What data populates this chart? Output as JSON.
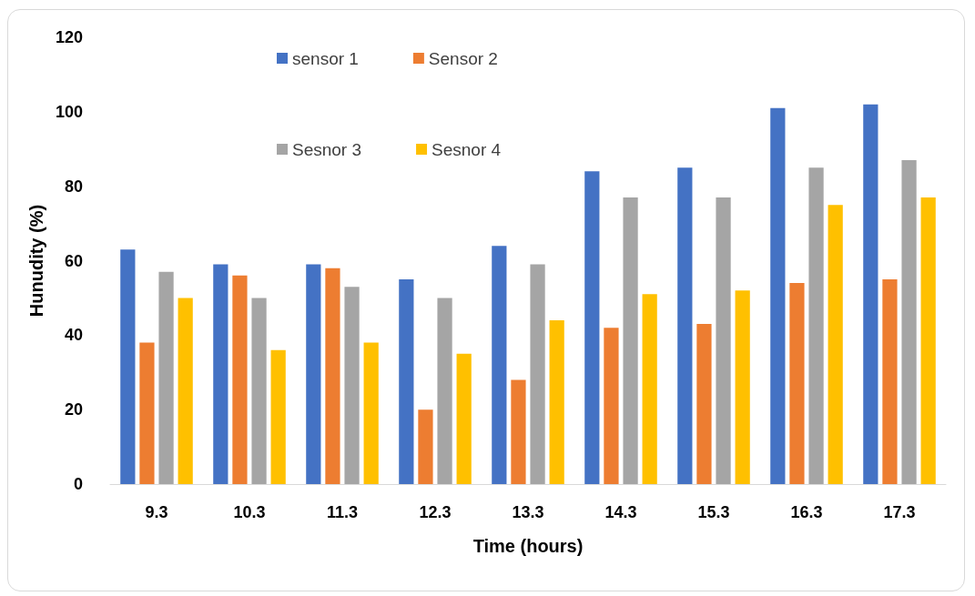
{
  "chart_data": {
    "type": "bar",
    "xlabel": "Time (hours)",
    "ylabel": "Hunudity (%)",
    "categories": [
      "9.3",
      "10.3",
      "11.3",
      "12.3",
      "13.3",
      "14.3",
      "15.3",
      "16.3",
      "17.3"
    ],
    "series": [
      {
        "name": "sensor 1",
        "color": "#4472c4",
        "values": [
          63,
          59,
          59,
          55,
          64,
          84,
          85,
          101,
          102
        ]
      },
      {
        "name": "Sensor 2",
        "color": "#ed7d31",
        "values": [
          38,
          56,
          58,
          20,
          28,
          42,
          43,
          54,
          55
        ]
      },
      {
        "name": "Sesnor 3",
        "color": "#a5a5a5",
        "values": [
          57,
          50,
          53,
          50,
          59,
          77,
          77,
          85,
          87
        ]
      },
      {
        "name": "Sesnor 4",
        "color": "#ffc000",
        "values": [
          50,
          36,
          38,
          35,
          44,
          51,
          52,
          75,
          77
        ]
      }
    ],
    "ylim": [
      0,
      120
    ],
    "yticks": [
      0,
      20,
      40,
      60,
      80,
      100,
      120
    ],
    "grid": false,
    "legend": "top"
  }
}
